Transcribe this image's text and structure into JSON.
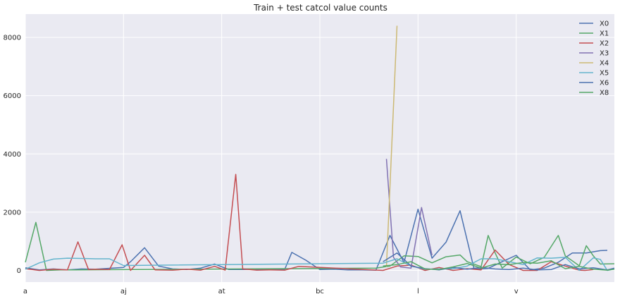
{
  "chart_data": {
    "type": "line",
    "title": "Train + test catcol value counts",
    "xlabel": "",
    "ylabel": "",
    "x_tick_labels": [
      "a",
      "aj",
      "at",
      "bc",
      "l",
      "v"
    ],
    "y_ticks": [
      0,
      2000,
      4000,
      6000,
      8000
    ],
    "ylim": [
      -400,
      8800
    ],
    "grid": true,
    "legend_position": "top-right",
    "x_count": 84,
    "series": [
      {
        "name": "X0",
        "color": "#4c72b0",
        "values": [
          [
            0,
            90
          ],
          [
            2,
            20
          ],
          [
            4,
            50
          ],
          [
            6,
            20
          ],
          [
            8,
            50
          ],
          [
            10,
            40
          ],
          [
            14,
            100
          ],
          [
            15,
            300
          ],
          [
            17,
            780
          ],
          [
            19,
            150
          ],
          [
            21,
            50
          ],
          [
            23,
            30
          ],
          [
            25,
            80
          ],
          [
            27,
            220
          ],
          [
            29,
            30
          ],
          [
            31,
            30
          ],
          [
            33,
            40
          ],
          [
            35,
            30
          ],
          [
            37,
            40
          ],
          [
            38,
            620
          ],
          [
            40,
            350
          ],
          [
            42,
            30
          ],
          [
            44,
            40
          ],
          [
            46,
            20
          ],
          [
            48,
            20
          ],
          [
            50,
            10
          ],
          [
            52,
            1200
          ],
          [
            54,
            270
          ],
          [
            56,
            2100
          ],
          [
            58,
            420
          ],
          [
            60,
            970
          ],
          [
            62,
            2050
          ],
          [
            64,
            40
          ],
          [
            66,
            70
          ],
          [
            68,
            300
          ],
          [
            70,
            520
          ],
          [
            72,
            20
          ],
          [
            74,
            80
          ],
          [
            76,
            280
          ],
          [
            78,
            600
          ],
          [
            80,
            600
          ],
          [
            82,
            680
          ],
          [
            83,
            690
          ]
        ]
      },
      {
        "name": "X1",
        "color": "#55a868",
        "values": [
          [
            0,
            280
          ],
          [
            1.5,
            1650
          ],
          [
            3,
            0
          ],
          [
            5,
            20
          ],
          [
            7,
            20
          ],
          [
            50,
            80
          ],
          [
            52,
            150
          ],
          [
            54,
            500
          ],
          [
            56,
            480
          ],
          [
            58,
            260
          ],
          [
            60,
            470
          ],
          [
            62,
            530
          ],
          [
            63,
            300
          ],
          [
            65,
            130
          ],
          [
            66,
            1200
          ],
          [
            67,
            600
          ],
          [
            68,
            80
          ],
          [
            70,
            460
          ],
          [
            72,
            230
          ],
          [
            74,
            450
          ],
          [
            76,
            1200
          ],
          [
            77,
            500
          ],
          [
            79,
            160
          ],
          [
            80,
            850
          ],
          [
            81,
            500
          ],
          [
            82,
            220
          ],
          [
            84,
            230
          ]
        ]
      },
      {
        "name": "X2",
        "color": "#c44e52",
        "values": [
          [
            0,
            60
          ],
          [
            2,
            0
          ],
          [
            4,
            40
          ],
          [
            6,
            20
          ],
          [
            7.5,
            980
          ],
          [
            9,
            30
          ],
          [
            10,
            40
          ],
          [
            12,
            30
          ],
          [
            13.8,
            880
          ],
          [
            15,
            0
          ],
          [
            17,
            520
          ],
          [
            18.5,
            20
          ],
          [
            21,
            10
          ],
          [
            23,
            40
          ],
          [
            25,
            10
          ],
          [
            27,
            140
          ],
          [
            28.5,
            10
          ],
          [
            30,
            3300
          ],
          [
            31,
            50
          ],
          [
            33,
            10
          ],
          [
            35,
            20
          ],
          [
            37,
            10
          ],
          [
            39,
            140
          ],
          [
            51,
            0
          ],
          [
            53,
            150
          ],
          [
            55,
            180
          ],
          [
            57,
            0
          ],
          [
            59,
            100
          ],
          [
            61,
            0
          ],
          [
            63,
            60
          ],
          [
            65,
            20
          ],
          [
            67,
            700
          ],
          [
            69,
            200
          ],
          [
            71,
            0
          ],
          [
            73,
            0
          ],
          [
            75,
            300
          ],
          [
            77,
            150
          ],
          [
            79,
            10
          ],
          [
            79.8,
            0
          ],
          [
            81,
            30
          ]
        ]
      },
      {
        "name": "X3",
        "color": "#8172b2",
        "values": [
          [
            51.5,
            3830
          ],
          [
            52.5,
            450
          ],
          [
            53.5,
            120
          ],
          [
            55,
            80
          ],
          [
            56.5,
            2160
          ],
          [
            58,
            520
          ]
        ]
      },
      {
        "name": "X4",
        "color": "#ccb974",
        "values": [
          [
            51.5,
            120
          ],
          [
            53,
            8400
          ]
        ]
      },
      {
        "name": "X5",
        "color": "#64b5cd",
        "values": [
          [
            0,
            40
          ],
          [
            2,
            260
          ],
          [
            4,
            390
          ],
          [
            6,
            420
          ],
          [
            8,
            410
          ],
          [
            10,
            400
          ],
          [
            12,
            400
          ],
          [
            14,
            170
          ],
          [
            51,
            250
          ],
          [
            53,
            400
          ],
          [
            55,
            150
          ],
          [
            57,
            40
          ],
          [
            59,
            50
          ],
          [
            61,
            60
          ],
          [
            63,
            150
          ],
          [
            65,
            400
          ],
          [
            67,
            400
          ],
          [
            69,
            300
          ],
          [
            71,
            200
          ],
          [
            73,
            430
          ],
          [
            75,
            420
          ],
          [
            77,
            450
          ],
          [
            79,
            0
          ],
          [
            81,
            430
          ],
          [
            82,
            380
          ],
          [
            83,
            0
          ],
          [
            84,
            50
          ]
        ]
      },
      {
        "name": "X6",
        "color": "#4c72b0",
        "values": [
          [
            51,
            300
          ],
          [
            53,
            600
          ],
          [
            55,
            150
          ],
          [
            57,
            60
          ],
          [
            59,
            20
          ],
          [
            61,
            100
          ],
          [
            63,
            40
          ],
          [
            65,
            100
          ],
          [
            67,
            50
          ],
          [
            69,
            30
          ],
          [
            71,
            80
          ],
          [
            73,
            20
          ],
          [
            75,
            30
          ],
          [
            77,
            200
          ],
          [
            79,
            50
          ],
          [
            81,
            90
          ],
          [
            83,
            20
          ],
          [
            84,
            80
          ]
        ]
      },
      {
        "name": "X8",
        "color": "#55a868",
        "values": [
          [
            51,
            150
          ],
          [
            53,
            200
          ],
          [
            55,
            300
          ],
          [
            57,
            50
          ],
          [
            59,
            30
          ],
          [
            61,
            120
          ],
          [
            63,
            240
          ],
          [
            65,
            80
          ],
          [
            67,
            220
          ],
          [
            69,
            200
          ],
          [
            71,
            270
          ],
          [
            73,
            250
          ],
          [
            75,
            330
          ],
          [
            77,
            60
          ],
          [
            79,
            140
          ],
          [
            81,
            40
          ],
          [
            83,
            10
          ],
          [
            84,
            40
          ]
        ]
      }
    ]
  }
}
